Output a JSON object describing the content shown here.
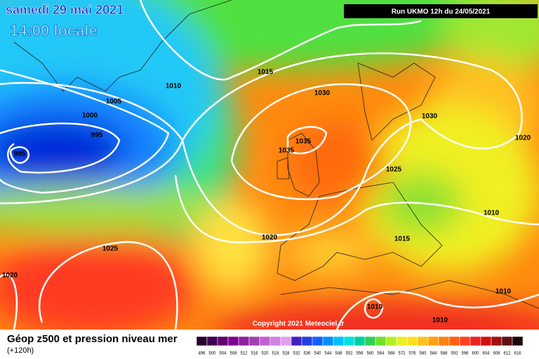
{
  "header": {
    "date": "samedi 29 mai 2021",
    "time": "14:00 locale",
    "run": "Run UKMO 12h du 24/05/2021"
  },
  "isobar_labels": [
    "1015",
    "1010",
    "1030",
    "1005",
    "1000",
    "995",
    "1030",
    "1035",
    "1035",
    "995",
    "1025",
    "1020",
    "1010",
    "1020",
    "1015",
    "1025",
    "1020",
    "1010",
    "1010",
    "1010"
  ],
  "copyright": "Copyright 2021 Meteociel.fr",
  "footer": {
    "title": "Géop z500 et pression niveau mer",
    "subtitle": "(+120h)"
  },
  "scale": {
    "labels": [
      496,
      500,
      504,
      508,
      512,
      516,
      520,
      524,
      528,
      532,
      536,
      540,
      544,
      548,
      552,
      556,
      560,
      564,
      568,
      572,
      576,
      580,
      584,
      588,
      592,
      596,
      600,
      604,
      608,
      612,
      616
    ]
  }
}
